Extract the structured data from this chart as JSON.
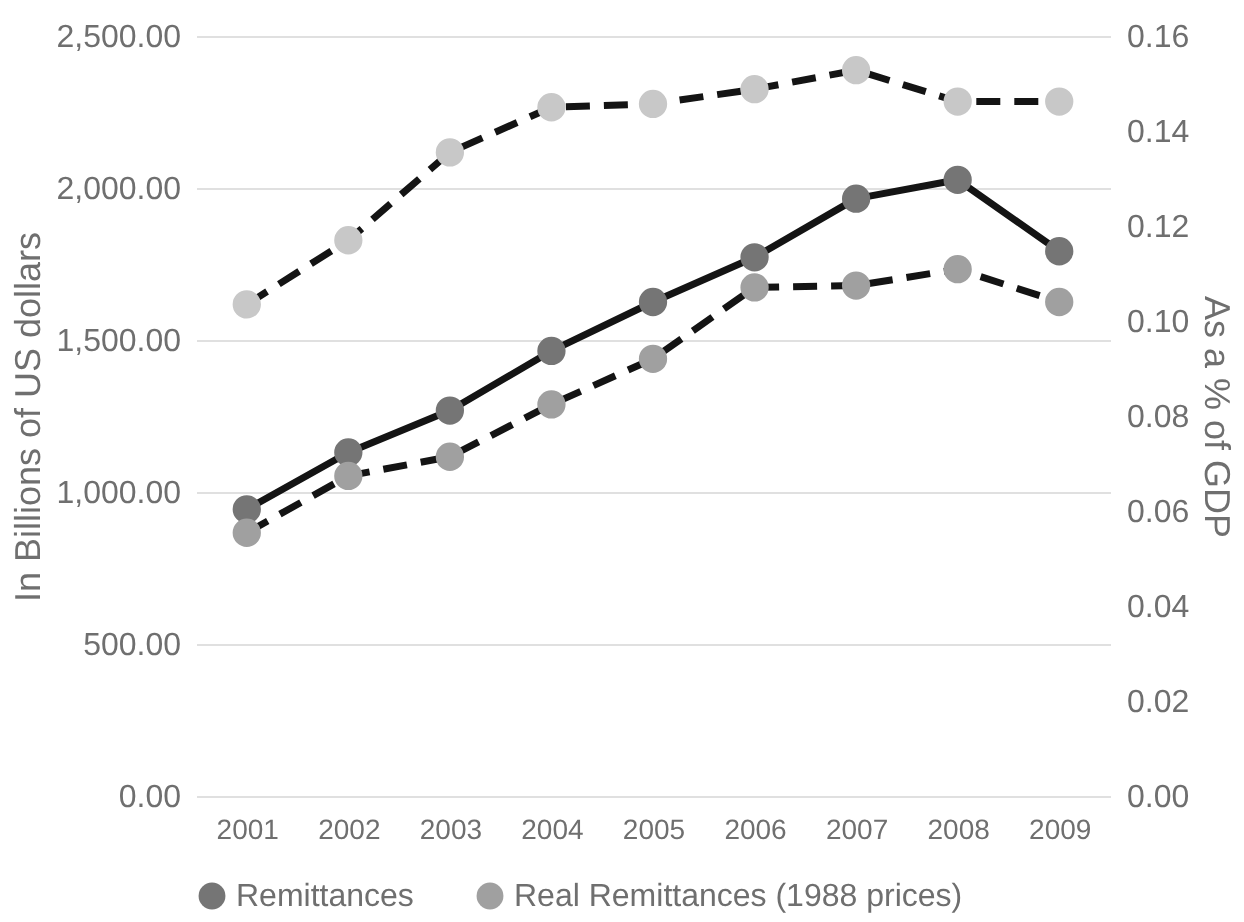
{
  "chart_data": {
    "type": "line",
    "ylabel": "In Billions of US dollars",
    "y2label": "As a % of GDP",
    "categories": [
      "2001",
      "2002",
      "2003",
      "2004",
      "2005",
      "2006",
      "2007",
      "2008",
      "2009"
    ],
    "series": [
      {
        "name": "Remittances",
        "color": "#757575",
        "line_style": "solid",
        "values": [
          943,
          1130,
          1268,
          1464,
          1625,
          1772,
          1965,
          2027,
          1792
        ]
      },
      {
        "name": "Real Remittances (1988 prices)",
        "color": "#a0a0a0",
        "line_style": "dashed",
        "values": [
          866,
          1053,
          1116,
          1288,
          1438,
          1673,
          1679,
          1733,
          1625
        ]
      },
      {
        "color": "#c8c8c8",
        "line_style": "dashed",
        "axis": "y2",
        "values": [
          0.1035,
          0.117,
          0.1355,
          0.145,
          0.1457,
          0.1488,
          0.1528,
          0.1462,
          0.1462
        ]
      }
    ],
    "ylim": [
      0,
      2500
    ],
    "yticks": [
      {
        "value": 0,
        "label": "0.00"
      },
      {
        "value": 500,
        "label": "500.00"
      },
      {
        "value": 1000,
        "label": "1,000.00"
      },
      {
        "value": 1500,
        "label": "1,500.00"
      },
      {
        "value": 2000,
        "label": "2,000.00"
      },
      {
        "value": 2500,
        "label": "2,500.00"
      }
    ],
    "y2lim": [
      0,
      0.16
    ],
    "y2ticks": [
      {
        "value": 0,
        "label": "0.00"
      },
      {
        "value": 0.02,
        "label": "0.02"
      },
      {
        "value": 0.04,
        "label": "0.04"
      },
      {
        "value": 0.06,
        "label": "0.06"
      },
      {
        "value": 0.08,
        "label": "0.08"
      },
      {
        "value": 0.1,
        "label": "0.10"
      },
      {
        "value": 0.12,
        "label": "0.12"
      },
      {
        "value": 0.14,
        "label": "0.14"
      },
      {
        "value": 0.16,
        "label": "0.16"
      }
    ],
    "grid": "y",
    "marker": "circle",
    "legend": "bottom"
  }
}
